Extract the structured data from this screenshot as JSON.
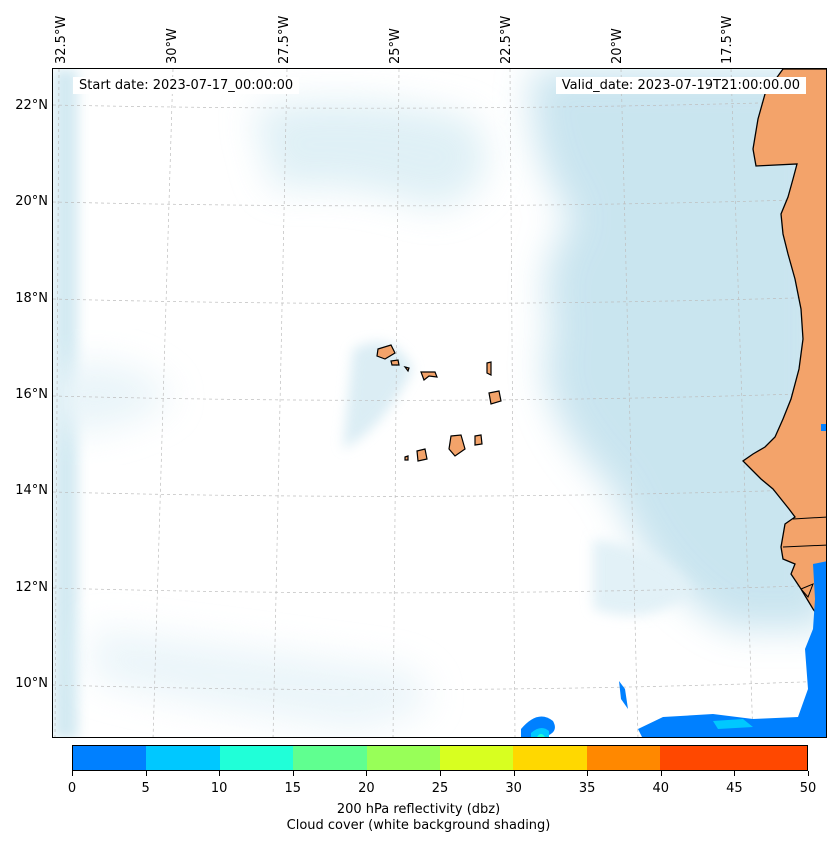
{
  "map": {
    "longitude_labels": [
      "32.5°W",
      "30°W",
      "27.5°W",
      "25°W",
      "22.5°W",
      "20°W",
      "17.5°W"
    ],
    "latitude_labels": [
      "22°N",
      "20°N",
      "18°N",
      "16°N",
      "14°N",
      "12°N",
      "10°N"
    ],
    "start_date": "Start date: 2023-07-17_00:00:00",
    "valid_date": "Valid_date: 2023-07-19T21:00:00.00",
    "colors": {
      "land": "#f3a36a",
      "cloud": "#b7dcea",
      "coastline": "#000000",
      "gridline": "#bdbdbd"
    }
  },
  "colorbar": {
    "ticks": [
      "0",
      "5",
      "10",
      "15",
      "20",
      "25",
      "30",
      "35",
      "40",
      "45",
      "50"
    ],
    "colors": [
      "#0080ff",
      "#00c8ff",
      "#20ffd8",
      "#60ff90",
      "#98ff58",
      "#d8ff20",
      "#ffd800",
      "#ff8800",
      "#ff4800"
    ],
    "label_line1": "200 hPa reflectivity (dbz)",
    "label_line2": "Cloud cover (white background shading)"
  }
}
